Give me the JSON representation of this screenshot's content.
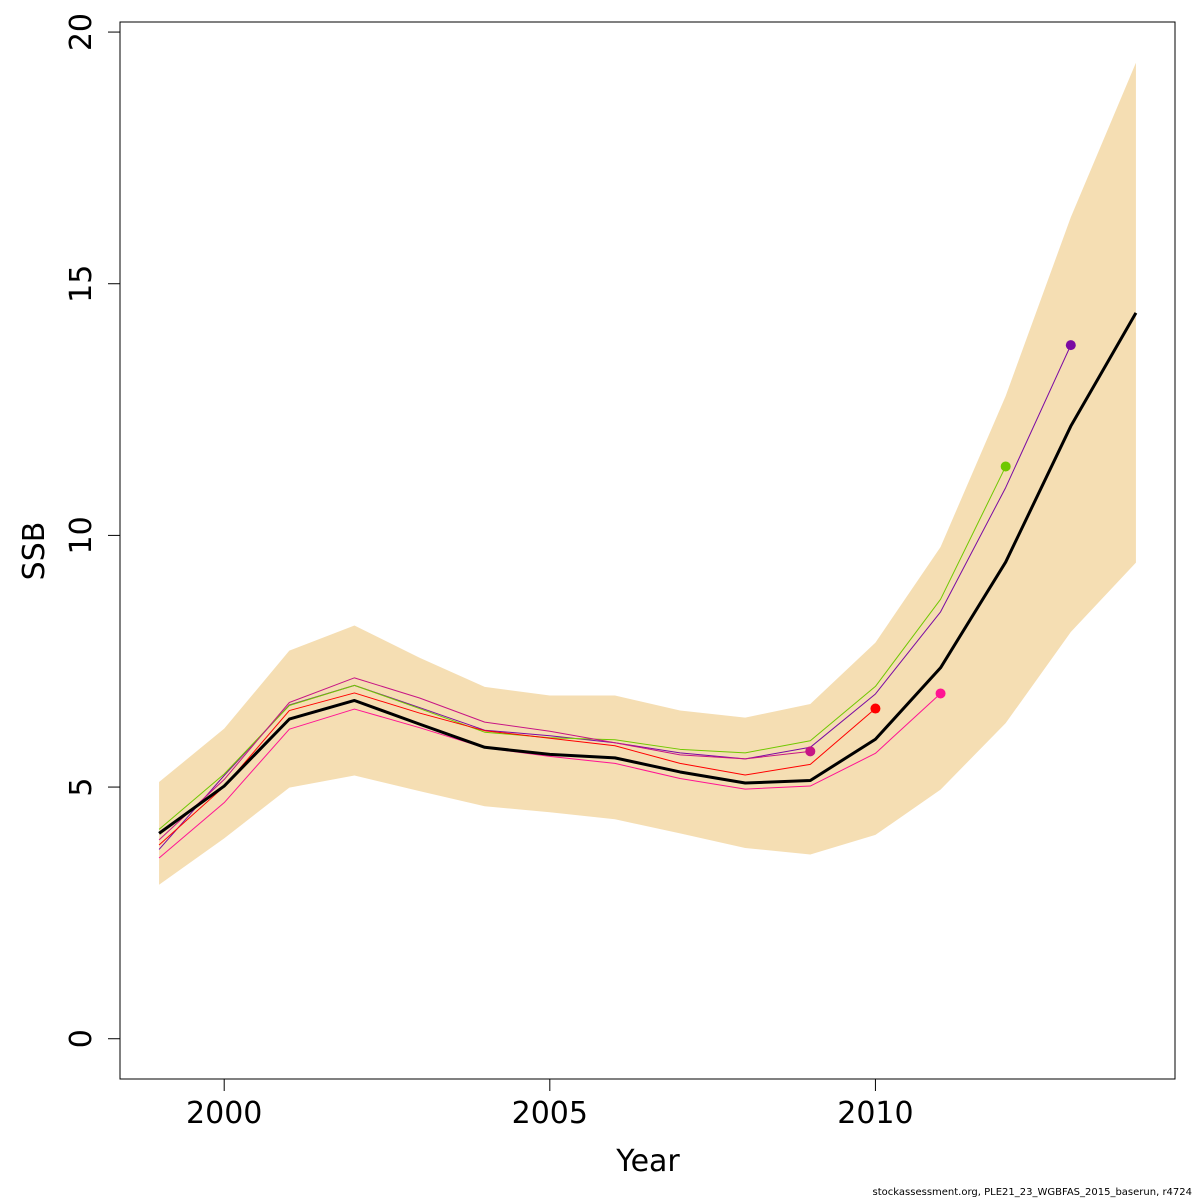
{
  "chart_data": {
    "type": "line",
    "xlabel": "Year",
    "ylabel": "SSB",
    "xlim": [
      1998.4,
      2014.6
    ],
    "ylim": [
      -0.8,
      20.2
    ],
    "x_ticks": [
      2000,
      2005,
      2010
    ],
    "y_ticks": [
      0,
      5,
      10,
      15,
      20
    ],
    "grid": false,
    "band_color": "#f5deb3",
    "confidence_band": {
      "x": [
        1999,
        2000,
        2001,
        2002,
        2003,
        2004,
        2005,
        2006,
        2007,
        2008,
        2009,
        2010,
        2011,
        2012,
        2013,
        2014
      ],
      "lower": [
        3.06,
        3.98,
        4.99,
        5.23,
        4.92,
        4.62,
        4.5,
        4.36,
        4.08,
        3.79,
        3.66,
        4.05,
        4.95,
        6.27,
        8.08,
        9.46
      ],
      "upper": [
        5.1,
        6.16,
        7.71,
        8.21,
        7.57,
        6.99,
        6.82,
        6.82,
        6.52,
        6.38,
        6.65,
        7.87,
        9.77,
        12.77,
        16.32,
        19.39
      ]
    },
    "series": [
      {
        "color": "#000000",
        "width": 3,
        "x": [
          1999,
          2000,
          2001,
          2002,
          2003,
          2004,
          2005,
          2006,
          2007,
          2008,
          2009,
          2010,
          2011,
          2012,
          2013,
          2014
        ],
        "values": [
          4.08,
          5.02,
          6.35,
          6.72,
          6.25,
          5.79,
          5.65,
          5.58,
          5.3,
          5.08,
          5.13,
          5.95,
          7.37,
          9.47,
          12.17,
          14.42
        ]
      },
      {
        "color": "#7b0aa3",
        "width": 1,
        "endpoint": true,
        "x": [
          1999,
          2000,
          2001,
          2002,
          2003,
          2004,
          2005,
          2006,
          2007,
          2008,
          2009,
          2010,
          2011,
          2012,
          2013
        ],
        "values": [
          3.76,
          5.23,
          6.63,
          7.02,
          6.58,
          6.13,
          6.02,
          5.88,
          5.68,
          5.56,
          5.79,
          6.85,
          8.48,
          10.95,
          13.78
        ]
      },
      {
        "color": "#6fc800",
        "width": 1,
        "endpoint": true,
        "x": [
          1999,
          2000,
          2001,
          2002,
          2003,
          2004,
          2005,
          2006,
          2007,
          2008,
          2009,
          2010,
          2011,
          2012
        ],
        "values": [
          4.16,
          5.26,
          6.62,
          7.02,
          6.56,
          6.09,
          5.98,
          5.94,
          5.75,
          5.68,
          5.92,
          7.0,
          8.73,
          11.37
        ]
      },
      {
        "color": "#ff1493",
        "width": 1,
        "endpoint": true,
        "x": [
          1999,
          2000,
          2001,
          2002,
          2003,
          2004,
          2005,
          2006,
          2007,
          2008,
          2009,
          2010,
          2011
        ],
        "values": [
          3.59,
          4.69,
          6.15,
          6.55,
          6.18,
          5.78,
          5.61,
          5.47,
          5.17,
          4.96,
          5.02,
          5.67,
          6.86
        ]
      },
      {
        "color": "#ff0000",
        "width": 1,
        "endpoint": true,
        "x": [
          1999,
          2000,
          2001,
          2002,
          2003,
          2004,
          2005,
          2006,
          2007,
          2008,
          2009,
          2010
        ],
        "values": [
          3.85,
          5.01,
          6.52,
          6.87,
          6.47,
          6.12,
          5.97,
          5.82,
          5.47,
          5.24,
          5.45,
          6.56
        ]
      },
      {
        "color": "#c71585",
        "width": 1,
        "endpoint": true,
        "x": [
          1999,
          2000,
          2001,
          2002,
          2003,
          2004,
          2005,
          2006,
          2007,
          2008,
          2009
        ],
        "values": [
          3.95,
          5.15,
          6.68,
          7.17,
          6.77,
          6.29,
          6.11,
          5.88,
          5.64,
          5.56,
          5.71
        ]
      }
    ]
  },
  "footnote": "stockassessment.org, PLE21_23_WGBFAS_2015_baserun, r4724"
}
